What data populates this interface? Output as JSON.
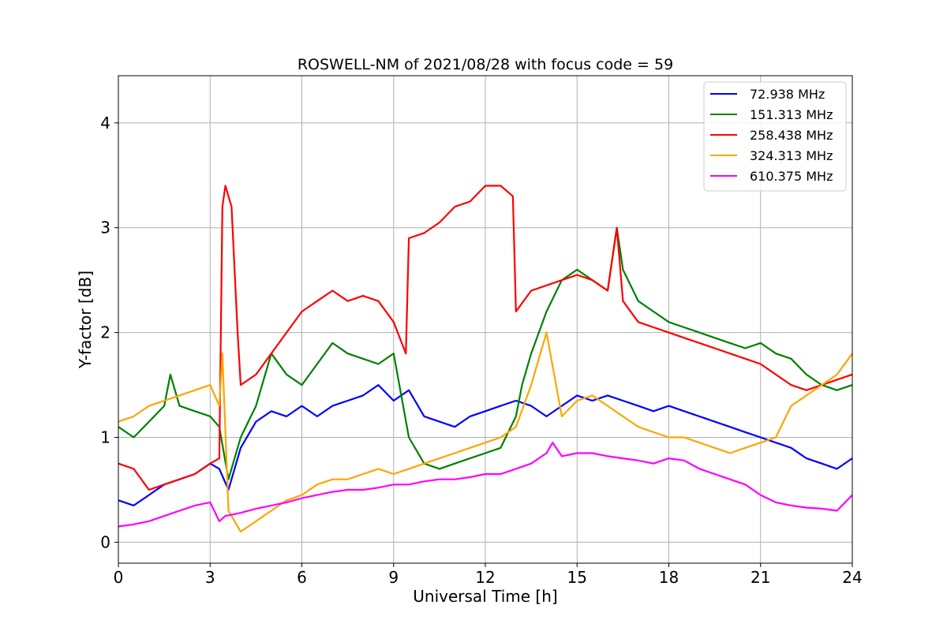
{
  "chart_data": {
    "type": "line",
    "title": "ROSWELL-NM of 2021/08/28 with focus code = 59",
    "xlabel": "Universal Time [h]",
    "ylabel": "Y-factor [dB]",
    "xlim": [
      0,
      24
    ],
    "ylim": [
      -0.2,
      4.45
    ],
    "xticks": [
      0,
      3,
      6,
      9,
      12,
      15,
      18,
      21,
      24
    ],
    "xtick_labels": [
      "0",
      "3",
      "6",
      "9",
      "12",
      "15",
      "18",
      "21",
      "24"
    ],
    "yticks": [
      0,
      1,
      2,
      3,
      4
    ],
    "ytick_labels": [
      "0",
      "1",
      "2",
      "3",
      "4"
    ],
    "grid": true,
    "legend_position": "top-right",
    "series": [
      {
        "name": " 72.938 MHz",
        "color": "#0000ff",
        "x": [
          0,
          0.5,
          1,
          1.5,
          2,
          2.5,
          3,
          3.3,
          3.6,
          4,
          4.5,
          5,
          5.5,
          6,
          6.5,
          7,
          7.5,
          8,
          8.5,
          9,
          9.5,
          10,
          10.5,
          11,
          11.5,
          12,
          12.5,
          13,
          13.5,
          14,
          14.5,
          15,
          15.5,
          16,
          16.5,
          17,
          17.5,
          18,
          18.5,
          19,
          19.5,
          20,
          20.5,
          21,
          21.5,
          22,
          22.5,
          23,
          23.5,
          24
        ],
        "y": [
          0.4,
          0.35,
          0.45,
          0.55,
          0.6,
          0.65,
          0.75,
          0.7,
          0.5,
          0.9,
          1.15,
          1.25,
          1.2,
          1.3,
          1.2,
          1.3,
          1.35,
          1.4,
          1.5,
          1.35,
          1.45,
          1.2,
          1.15,
          1.1,
          1.2,
          1.25,
          1.3,
          1.35,
          1.3,
          1.2,
          1.3,
          1.4,
          1.35,
          1.4,
          1.35,
          1.3,
          1.25,
          1.3,
          1.25,
          1.2,
          1.15,
          1.1,
          1.05,
          1.0,
          0.95,
          0.9,
          0.8,
          0.75,
          0.7,
          0.8
        ]
      },
      {
        "name": "151.313 MHz",
        "color": "#008000",
        "x": [
          0,
          0.5,
          1,
          1.5,
          1.7,
          2,
          2.5,
          3,
          3.3,
          3.6,
          4,
          4.5,
          5,
          5.5,
          6,
          6.5,
          7,
          7.5,
          8,
          8.5,
          9,
          9.5,
          10,
          10.5,
          11,
          11.5,
          12,
          12.5,
          13,
          13.2,
          13.5,
          14,
          14.5,
          15,
          15.5,
          16,
          16.3,
          16.5,
          17,
          17.5,
          18,
          18.5,
          19,
          19.5,
          20,
          20.5,
          21,
          21.5,
          22,
          22.5,
          23,
          23.5,
          24
        ],
        "y": [
          1.1,
          1.0,
          1.15,
          1.3,
          1.6,
          1.3,
          1.25,
          1.2,
          1.1,
          0.6,
          1.0,
          1.3,
          1.8,
          1.6,
          1.5,
          1.7,
          1.9,
          1.8,
          1.75,
          1.7,
          1.8,
          1.0,
          0.75,
          0.7,
          0.75,
          0.8,
          0.85,
          0.9,
          1.2,
          1.5,
          1.8,
          2.2,
          2.5,
          2.6,
          2.5,
          2.4,
          3.0,
          2.6,
          2.3,
          2.2,
          2.1,
          2.05,
          2.0,
          1.95,
          1.9,
          1.85,
          1.9,
          1.8,
          1.75,
          1.6,
          1.5,
          1.45,
          1.5
        ]
      },
      {
        "name": "258.438 MHz",
        "color": "#ff0000",
        "x": [
          0,
          0.5,
          1,
          1.5,
          2,
          2.5,
          3,
          3.3,
          3.4,
          3.5,
          3.7,
          3.9,
          4,
          4.5,
          5,
          5.5,
          6,
          6.5,
          7,
          7.5,
          8,
          8.5,
          9,
          9.4,
          9.5,
          10,
          10.5,
          11,
          11.5,
          12,
          12.5,
          12.9,
          13,
          13.5,
          14,
          14.5,
          15,
          15.5,
          16,
          16.3,
          16.5,
          17,
          17.5,
          18,
          18.5,
          19,
          19.5,
          20,
          20.5,
          21,
          21.5,
          22,
          22.5,
          23,
          23.5,
          24
        ],
        "y": [
          0.75,
          0.7,
          0.5,
          0.55,
          0.6,
          0.65,
          0.75,
          0.8,
          3.2,
          3.4,
          3.2,
          2.0,
          1.5,
          1.6,
          1.8,
          2.0,
          2.2,
          2.3,
          2.4,
          2.3,
          2.35,
          2.3,
          2.1,
          1.8,
          2.9,
          2.95,
          3.05,
          3.2,
          3.25,
          3.4,
          3.4,
          3.3,
          2.2,
          2.4,
          2.45,
          2.5,
          2.55,
          2.5,
          2.4,
          3.0,
          2.3,
          2.1,
          2.05,
          2.0,
          1.95,
          1.9,
          1.85,
          1.8,
          1.75,
          1.7,
          1.6,
          1.5,
          1.45,
          1.5,
          1.55,
          1.6
        ]
      },
      {
        "name": "324.313 MHz",
        "color": "#ffa500",
        "x": [
          0,
          0.5,
          1,
          1.5,
          2,
          2.5,
          3,
          3.3,
          3.4,
          3.6,
          4,
          4.5,
          5,
          5.5,
          6,
          6.5,
          7,
          7.5,
          8,
          8.5,
          9,
          9.5,
          10,
          10.5,
          11,
          11.5,
          12,
          12.5,
          13,
          13.5,
          14,
          14.5,
          15,
          15.5,
          16,
          16.5,
          17,
          17.5,
          18,
          18.5,
          19,
          19.5,
          20,
          20.5,
          21,
          21.5,
          22,
          22.5,
          23,
          23.5,
          24
        ],
        "y": [
          1.15,
          1.2,
          1.3,
          1.35,
          1.4,
          1.45,
          1.5,
          1.3,
          1.8,
          0.3,
          0.1,
          0.2,
          0.3,
          0.4,
          0.45,
          0.55,
          0.6,
          0.6,
          0.65,
          0.7,
          0.65,
          0.7,
          0.75,
          0.8,
          0.85,
          0.9,
          0.95,
          1.0,
          1.1,
          1.5,
          2.0,
          1.2,
          1.35,
          1.4,
          1.3,
          1.2,
          1.1,
          1.05,
          1.0,
          1.0,
          0.95,
          0.9,
          0.85,
          0.9,
          0.95,
          1.0,
          1.3,
          1.4,
          1.5,
          1.6,
          1.8
        ]
      },
      {
        "name": "610.375 MHz",
        "color": "#ff00ff",
        "x": [
          0,
          0.5,
          1,
          1.5,
          2,
          2.5,
          3,
          3.3,
          3.5,
          4,
          4.5,
          5,
          5.5,
          6,
          6.5,
          7,
          7.5,
          8,
          8.5,
          9,
          9.5,
          10,
          10.5,
          11,
          11.5,
          12,
          12.5,
          13,
          13.5,
          14,
          14.2,
          14.5,
          15,
          15.5,
          16,
          16.5,
          17,
          17.5,
          18,
          18.5,
          19,
          19.5,
          20,
          20.5,
          21,
          21.5,
          22,
          22.5,
          23,
          23.5,
          24
        ],
        "y": [
          0.15,
          0.17,
          0.2,
          0.25,
          0.3,
          0.35,
          0.38,
          0.2,
          0.25,
          0.28,
          0.32,
          0.35,
          0.38,
          0.42,
          0.45,
          0.48,
          0.5,
          0.5,
          0.52,
          0.55,
          0.55,
          0.58,
          0.6,
          0.6,
          0.62,
          0.65,
          0.65,
          0.7,
          0.75,
          0.85,
          0.95,
          0.82,
          0.85,
          0.85,
          0.82,
          0.8,
          0.78,
          0.75,
          0.8,
          0.78,
          0.7,
          0.65,
          0.6,
          0.55,
          0.45,
          0.38,
          0.35,
          0.33,
          0.32,
          0.3,
          0.45
        ]
      }
    ]
  }
}
